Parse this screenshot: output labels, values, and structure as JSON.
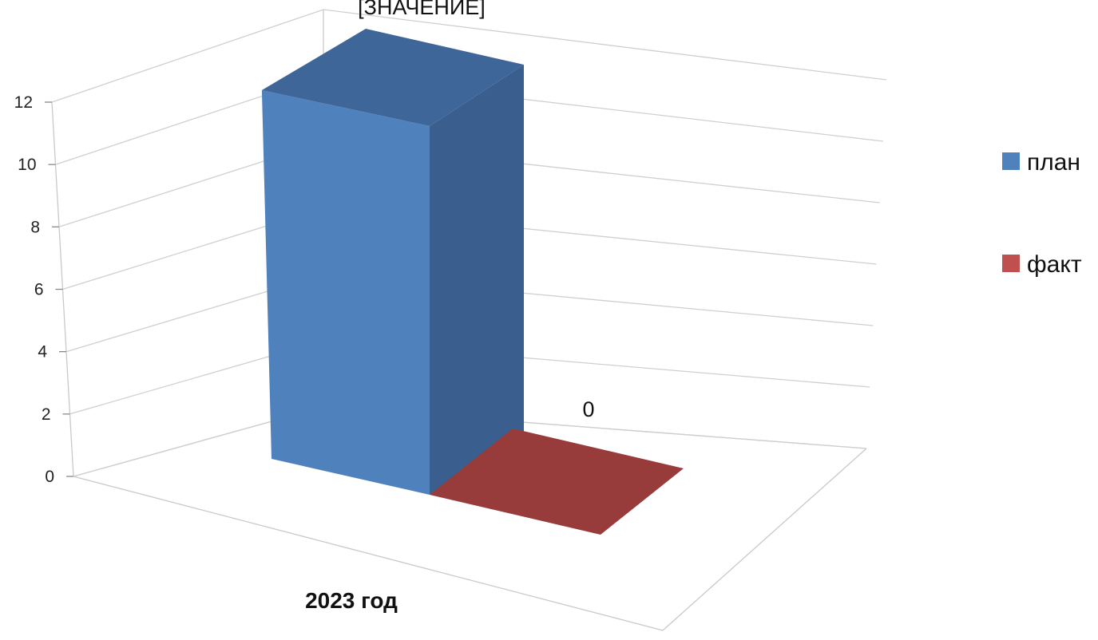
{
  "chart_data": {
    "type": "bar",
    "style": "3d-column",
    "categories": [
      "2023 год"
    ],
    "series": [
      {
        "name": "план",
        "values": [
          11
        ],
        "color": "#4f81bd",
        "data_label": "[ЗНАЧЕНИЕ]"
      },
      {
        "name": "факт",
        "values": [
          0
        ],
        "color": "#c0504d",
        "data_label": "0"
      }
    ],
    "ylim": [
      0,
      12
    ],
    "yticks": [
      0,
      2,
      4,
      6,
      8,
      10,
      12
    ],
    "grid": true,
    "legend_position": "right"
  }
}
